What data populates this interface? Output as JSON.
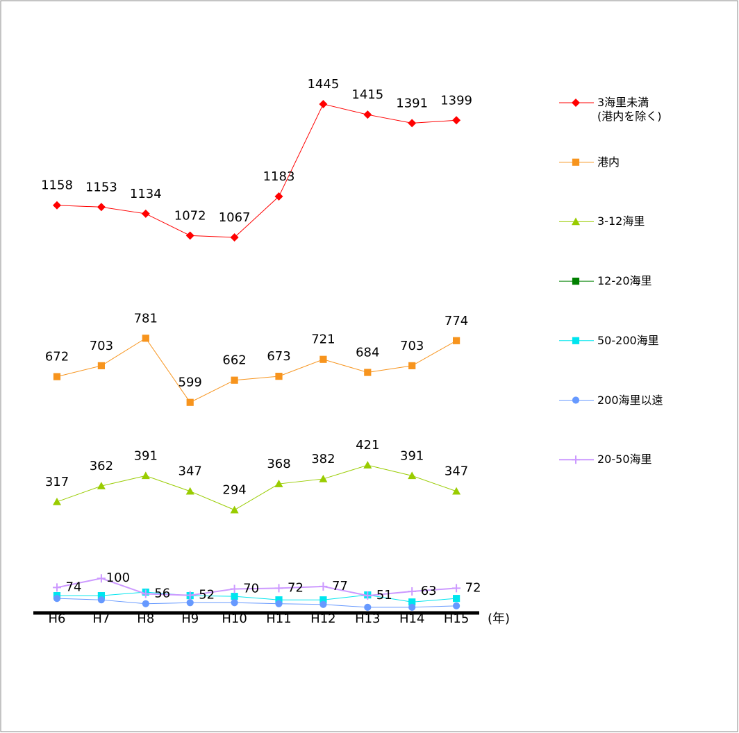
{
  "chart_data": {
    "type": "line",
    "categories": [
      "H6",
      "H7",
      "H8",
      "H9",
      "H10",
      "H11",
      "H12",
      "H13",
      "H14",
      "H15"
    ],
    "x_unit_label": "(年)",
    "ylim": [
      0,
      1600
    ],
    "series": [
      {
        "name": "3海里未満\n(港内を除く)",
        "color": "#ff0000",
        "marker": "diamond",
        "show_labels": true,
        "label_position": "above",
        "values": [
          1158,
          1153,
          1134,
          1072,
          1067,
          1183,
          1445,
          1415,
          1391,
          1399
        ]
      },
      {
        "name": "港内",
        "color": "#f7941d",
        "marker": "square",
        "show_labels": true,
        "label_position": "above",
        "values": [
          672,
          703,
          781,
          599,
          662,
          673,
          721,
          684,
          703,
          774
        ]
      },
      {
        "name": "3-12海里",
        "color": "#99cc00",
        "marker": "triangle",
        "show_labels": true,
        "label_position": "above",
        "values": [
          317,
          362,
          391,
          347,
          294,
          368,
          382,
          421,
          391,
          347
        ]
      },
      {
        "name": "12-20海里",
        "color": "#008000",
        "marker": "square",
        "show_labels": false,
        "values": [
          null,
          null,
          null,
          null,
          null,
          null,
          null,
          null,
          null,
          null
        ]
      },
      {
        "name": "50-200海里",
        "color": "#00e5ee",
        "marker": "square",
        "show_labels": false,
        "values": [
          51,
          51,
          61,
          51,
          49,
          39,
          39,
          53,
          33,
          43
        ]
      },
      {
        "name": "200海里以遠",
        "color": "#6699ff",
        "marker": "circle",
        "show_labels": false,
        "values": [
          43,
          39,
          28,
          31,
          31,
          28,
          26,
          18,
          18,
          22
        ]
      },
      {
        "name": "20-50海里",
        "color": "#cc99ff",
        "marker": "plus",
        "show_labels": true,
        "label_position": "right",
        "values": [
          74,
          100,
          56,
          52,
          70,
          72,
          77,
          51,
          63,
          72
        ]
      }
    ]
  }
}
